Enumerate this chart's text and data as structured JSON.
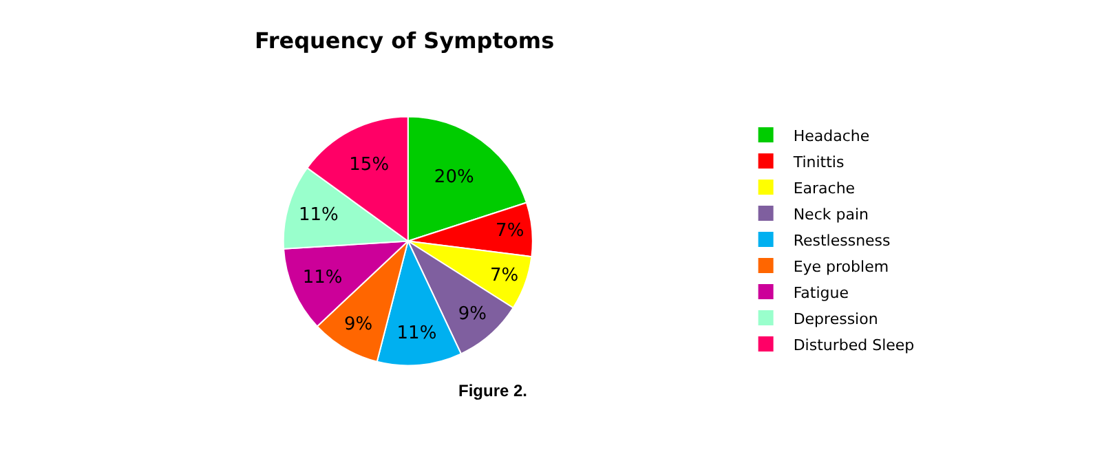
{
  "chart_data": {
    "type": "pie",
    "title": "Frequency of Symptoms",
    "categories": [
      "Headache",
      "Tinittis",
      "Earache",
      "Neck pain",
      "Restlessness",
      "Eye problem",
      "Fatigue",
      "Depression",
      "Disturbed Sleep"
    ],
    "values": [
      20,
      7,
      7,
      9,
      11,
      9,
      11,
      11,
      15
    ],
    "value_labels": [
      "20%",
      "7%",
      "7%",
      "9%",
      "11%",
      "9%",
      "11%",
      "11%",
      "15%"
    ],
    "colors": [
      "#00cc00",
      "#ff0000",
      "#ffff00",
      "#7f5f9f",
      "#00b0f0",
      "#ff6600",
      "#cc0099",
      "#99ffcc",
      "#ff0066"
    ],
    "legend": "right",
    "annotations": [
      "Figure 2."
    ]
  }
}
